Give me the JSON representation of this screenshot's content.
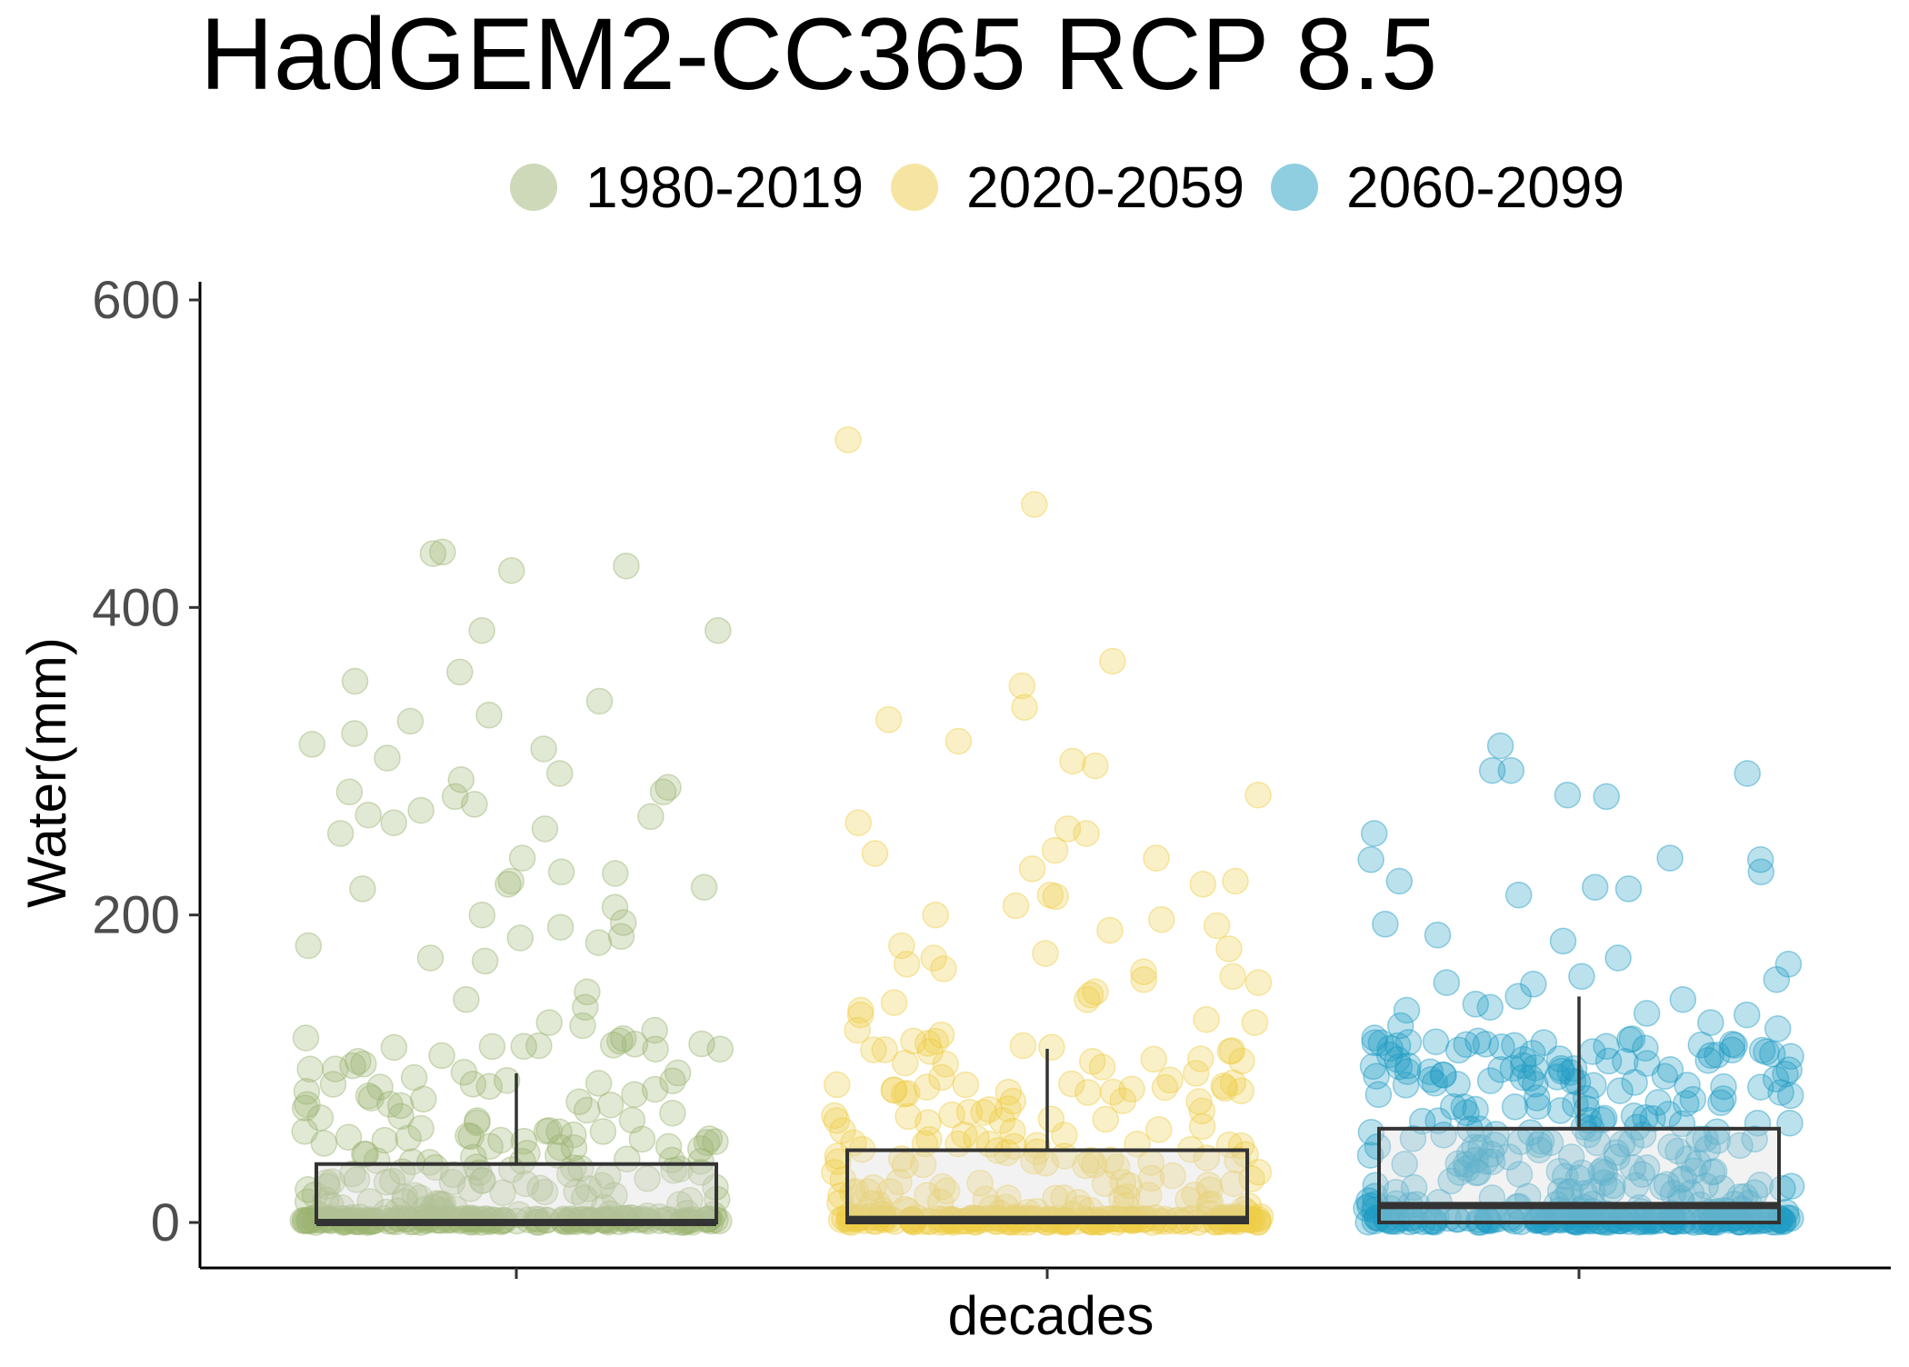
{
  "chart_data": {
    "type": "box_jitter",
    "title": "HadGEM2-CC365 RCP 8.5",
    "xlabel": "decades",
    "ylabel": "Water(mm)",
    "ylim": [
      -45,
      615
    ],
    "y_ticks": [
      0,
      200,
      400,
      600
    ],
    "grid": false,
    "legend_position": "top",
    "series": [
      {
        "name": "1980-2019",
        "color": "#9CB472",
        "box": {
          "q1": 0,
          "median": 0,
          "q3": 38,
          "whisker_low": 0,
          "whisker_high": 97
        },
        "jitter_seed": 11,
        "n_zero": 110,
        "n_low": 120,
        "n_mid": 55,
        "values_high": [
          436,
          424,
          435,
          427,
          385,
          385,
          358,
          352,
          339,
          330,
          326,
          318,
          311,
          308,
          302,
          292,
          288,
          283,
          280,
          280,
          277,
          272,
          268,
          265,
          264,
          260,
          256,
          253,
          237,
          228,
          227,
          222,
          220,
          218,
          217,
          205,
          200,
          195,
          192,
          186,
          185,
          182,
          180,
          172,
          170,
          150,
          145,
          140,
          130,
          128,
          125,
          120,
          118,
          116,
          115
        ]
      },
      {
        "name": "2020-2059",
        "color": "#EDCC45",
        "box": {
          "q1": 0,
          "median": 2,
          "q3": 47,
          "whisker_low": 0,
          "whisker_high": 113
        },
        "jitter_seed": 23,
        "n_zero": 120,
        "n_low": 115,
        "n_mid": 60,
        "values_high": [
          509,
          467,
          365,
          349,
          335,
          327,
          313,
          300,
          297,
          278,
          260,
          256,
          253,
          242,
          240,
          237,
          230,
          222,
          220,
          213,
          212,
          206,
          200,
          197,
          193,
          190,
          180,
          178,
          175,
          172,
          168,
          165,
          163,
          160,
          158,
          156,
          150,
          148,
          145,
          143,
          138,
          135,
          132,
          130,
          125,
          122,
          118,
          115,
          114
        ]
      },
      {
        "name": "2060-2099",
        "color": "#1F9CC4",
        "box": {
          "q1": 0,
          "median": 11,
          "q3": 61,
          "whisker_low": 0,
          "whisker_high": 147
        },
        "jitter_seed": 37,
        "n_zero": 110,
        "n_low": 145,
        "n_mid": 110,
        "values_high": [
          310,
          294,
          294,
          292,
          278,
          277,
          253,
          237,
          236,
          236,
          228,
          222,
          218,
          217,
          213,
          194,
          187,
          183,
          172,
          168,
          160,
          158,
          156,
          155,
          147,
          145,
          142,
          140,
          138,
          136,
          135,
          130,
          128,
          126,
          120,
          118,
          117,
          116,
          115,
          112,
          110,
          108,
          105,
          102,
          100,
          98,
          96,
          95,
          92,
          90
        ]
      }
    ]
  }
}
